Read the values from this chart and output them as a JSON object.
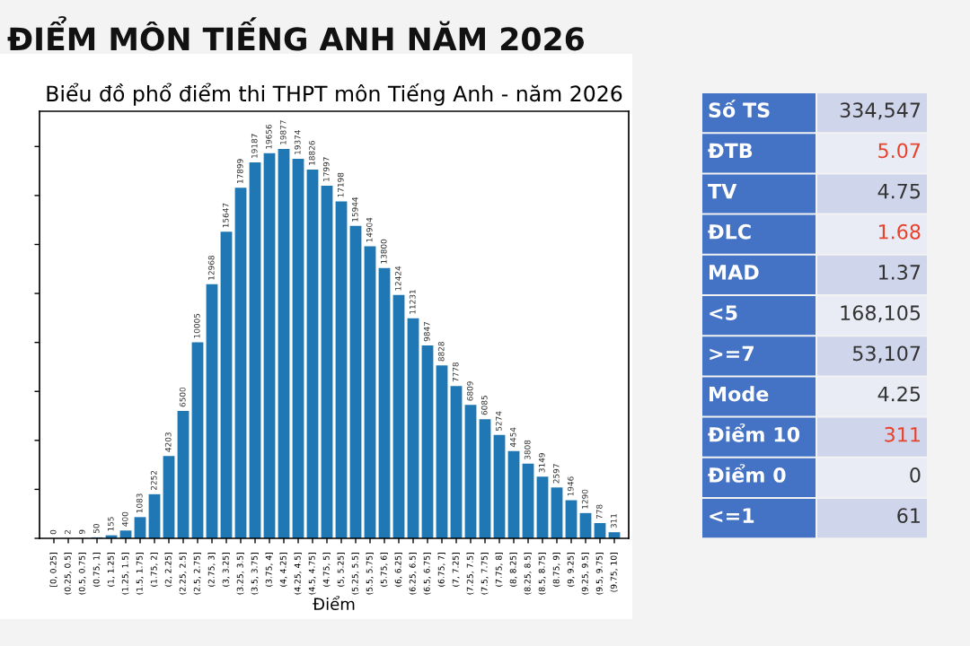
{
  "chart_data": [
    {
      "type": "bar",
      "title": "Biểu đồ phổ điểm thi THPT môn Tiếng Anh - năm 2026",
      "xlabel": "Điểm",
      "categories": [
        "[0, 0.25]",
        "(0.25, 0.5]",
        "(0.5, 0.75]",
        "(0.75, 1]",
        "(1, 1.25]",
        "(1.25, 1.5]",
        "(1.5, 1.75]",
        "(1.75, 2]",
        "(2, 2.25]",
        "(2.25, 2.5]",
        "(2.5, 2.75]",
        "(2.75, 3]",
        "(3, 3.25]",
        "(3.25, 3.5]",
        "(3.5, 3.75]",
        "(3.75, 4]",
        "(4, 4.25]",
        "(4.25, 4.5]",
        "(4.5, 4.75]",
        "(4.75, 5]",
        "(5, 5.25]",
        "(5.25, 5.5]",
        "(5.5, 5.75]",
        "(5.75, 6]",
        "(6, 6.25]",
        "(6.25, 6.5]",
        "(6.5, 6.75]",
        "(6.75, 7]",
        "(7, 7.25]",
        "(7.25, 7.5]",
        "(7.5, 7.75]",
        "(7.75, 8]",
        "(8, 8.25]",
        "(8.25, 8.5]",
        "(8.5, 8.75]",
        "(8.75, 9]",
        "(9, 9.25]",
        "(9.25, 9.5]",
        "(9.5, 9.75]",
        "(9.75, 10]"
      ],
      "values": [
        0,
        2,
        9,
        50,
        155,
        400,
        1083,
        2252,
        4203,
        6500,
        10005,
        12968,
        15647,
        17899,
        19187,
        19656,
        19877,
        19374,
        18826,
        17997,
        17198,
        15944,
        14904,
        13800,
        12424,
        11231,
        9847,
        8828,
        7778,
        6809,
        6085,
        5274,
        4454,
        3808,
        3149,
        2597,
        1946,
        1290,
        778,
        311
      ],
      "color": "#1f77b4",
      "data_labels": true,
      "ylim": [
        0,
        21800
      ],
      "yticks": [
        {
          "value": 0,
          "label": null
        },
        {
          "value": 2500,
          "label": null
        },
        {
          "value": 5000,
          "label": null
        },
        {
          "value": 7500,
          "label": null
        },
        {
          "value": 10000,
          "label": null
        },
        {
          "value": 12500,
          "label": null
        },
        {
          "value": 15000,
          "label": null
        },
        {
          "value": 17500,
          "label": null
        },
        {
          "value": 20000,
          "label": null
        }
      ],
      "tick_labels": "x",
      "grid": false,
      "legend": false
    },
    {
      "type": "other",
      "title": "ĐIỂM MÔN TIẾNG ANH NĂM 2026",
      "categories": [
        "Số TS",
        "ĐTB",
        "TV",
        "ĐLC",
        "MAD",
        "<5",
        ">=7",
        "Mode",
        "Điểm 10",
        "Điểm 0",
        "<=1"
      ],
      "value_labels": [
        "334,547",
        "5.07",
        "4.75",
        "1.68",
        "1.37",
        "168,105",
        "53,107",
        "4.25",
        "311",
        "0",
        "61"
      ],
      "colors": [
        "#333333",
        "#e8412c",
        "#333333",
        "#e8412c",
        "#333333",
        "#333333",
        "#333333",
        "#333333",
        "#e8412c",
        "#333333",
        "#333333"
      ]
    }
  ]
}
